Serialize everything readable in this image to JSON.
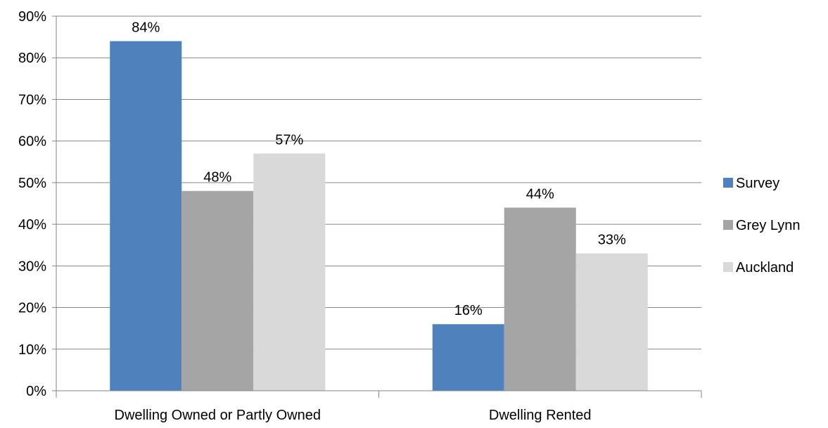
{
  "chart_data": {
    "type": "bar",
    "categories": [
      "Dwelling Owned or  Partly Owned",
      "Dwelling Rented"
    ],
    "series": [
      {
        "name": "Survey",
        "values": [
          84,
          16
        ],
        "labels": [
          "84%",
          "16%"
        ],
        "color": "#4F81BD"
      },
      {
        "name": "Grey Lynn",
        "values": [
          48,
          44
        ],
        "labels": [
          "48%",
          "44%"
        ],
        "color": "#A5A5A5"
      },
      {
        "name": "Auckland",
        "values": [
          57,
          33
        ],
        "labels": [
          "57%",
          "33%"
        ],
        "color": "#D9D9D9"
      }
    ],
    "ylim": [
      0,
      90
    ],
    "yticks": [
      0,
      10,
      20,
      30,
      40,
      50,
      60,
      70,
      80,
      90
    ],
    "ytick_labels": [
      "0%",
      "10%",
      "20%",
      "30%",
      "40%",
      "50%",
      "60%",
      "70%",
      "80%",
      "90%"
    ],
    "grid": true,
    "legend": "right",
    "title": "",
    "xlabel": "",
    "ylabel": ""
  },
  "colors": {
    "gridline": "#868686",
    "axis": "#868686"
  }
}
